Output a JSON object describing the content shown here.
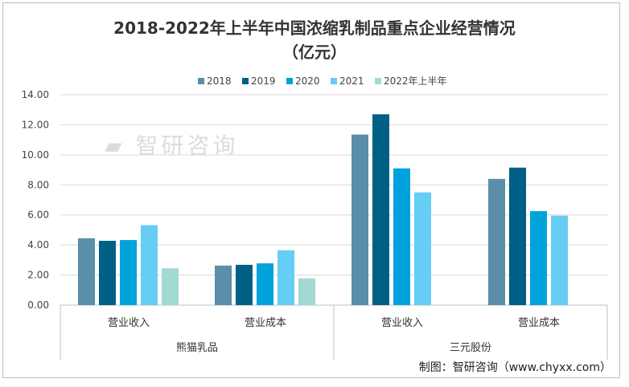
{
  "chart_data": {
    "type": "bar",
    "title": "2018-2022年上半年中国浓缩乳制品重点企业经营情况",
    "subtitle": "（亿元）",
    "groups": [
      {
        "name": "熊猫乳品",
        "categories": [
          "营业收入",
          "营业成本"
        ]
      },
      {
        "name": "三元股份",
        "categories": [
          "营业收入",
          "营业成本"
        ]
      }
    ],
    "series": [
      {
        "name": "2018",
        "color": "#5b8ea8",
        "values": [
          4.45,
          2.63,
          11.35,
          8.4
        ]
      },
      {
        "name": "2019",
        "color": "#005f84",
        "values": [
          4.28,
          2.68,
          12.7,
          9.15
        ]
      },
      {
        "name": "2020",
        "color": "#00a2dc",
        "values": [
          4.33,
          2.78,
          9.1,
          6.25
        ]
      },
      {
        "name": "2021",
        "color": "#66cdf5",
        "values": [
          5.32,
          3.65,
          7.5,
          5.95
        ]
      },
      {
        "name": "2022年上半年",
        "color": "#a3d9d3",
        "values": [
          2.45,
          1.78,
          null,
          null
        ]
      }
    ],
    "ylim": [
      0,
      14
    ],
    "yticks": [
      "0.00",
      "2.00",
      "4.00",
      "6.00",
      "8.00",
      "10.00",
      "12.00",
      "14.00"
    ],
    "grid": true,
    "legend": "top"
  },
  "source": "制图：智研咨询（www.chyxx.com）",
  "watermark": "智研咨询 www.chyxx.com"
}
